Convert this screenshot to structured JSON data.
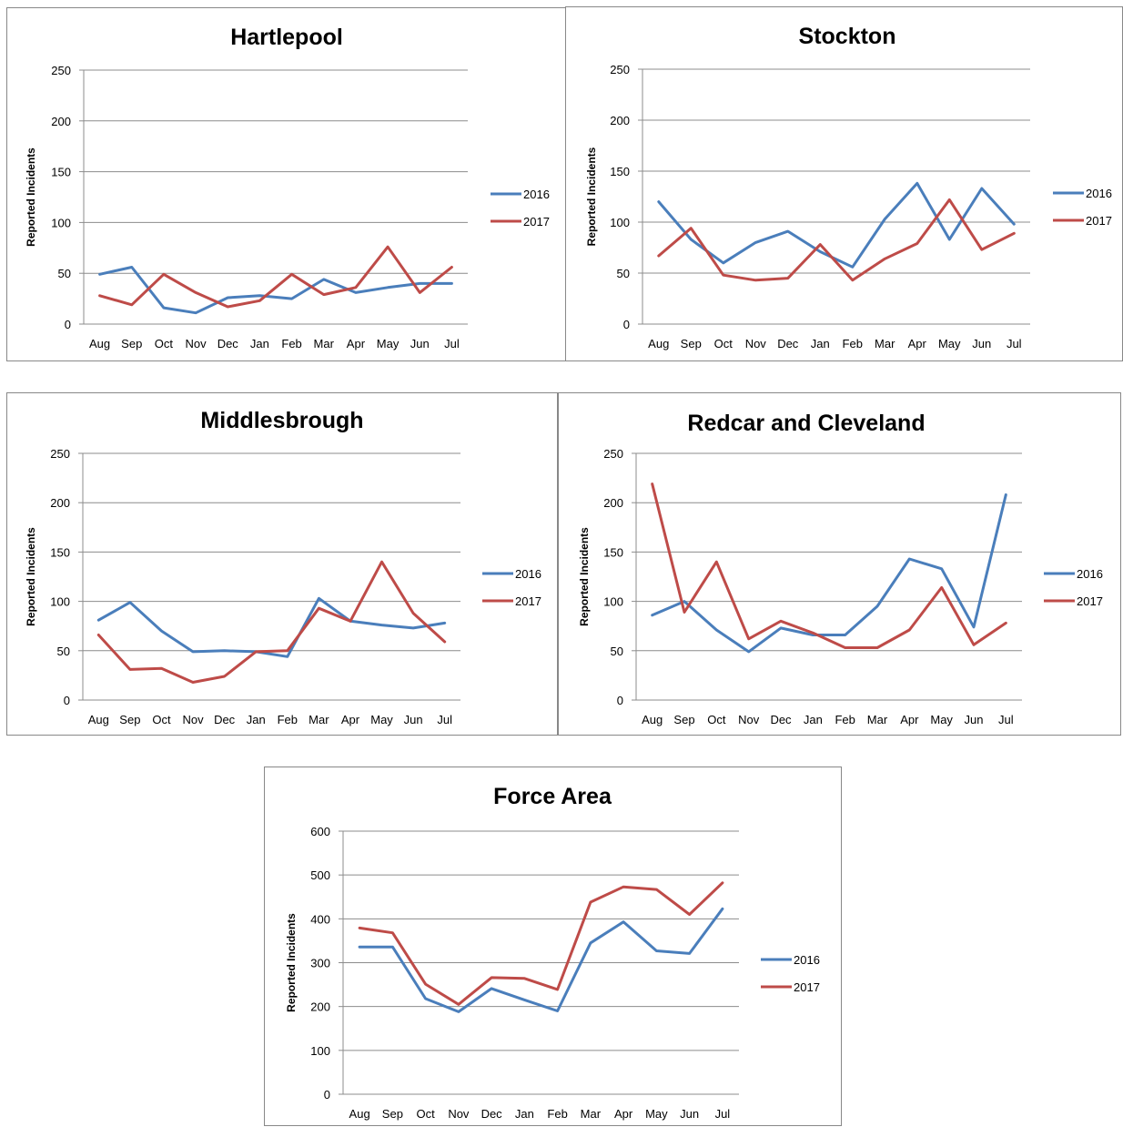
{
  "colors": {
    "series_2016": "#4a7ebb",
    "series_2017": "#be4b48"
  },
  "chart_data": [
    {
      "type": "line",
      "title": "Hartlepool",
      "ylabel": "Reported Incidents",
      "categories": [
        "Aug",
        "Sep",
        "Oct",
        "Nov",
        "Dec",
        "Jan",
        "Feb",
        "Mar",
        "Apr",
        "May",
        "Jun",
        "Jul"
      ],
      "ylim": [
        0,
        250
      ],
      "yticks": [
        0,
        50,
        100,
        150,
        200,
        250
      ],
      "grid": true,
      "legend": "right",
      "series": [
        {
          "name": "2016",
          "values": [
            49,
            56,
            16,
            11,
            26,
            28,
            25,
            44,
            31,
            36,
            40,
            40
          ]
        },
        {
          "name": "2017",
          "values": [
            28,
            19,
            49,
            31,
            17,
            23,
            49,
            29,
            36,
            76,
            31,
            56
          ]
        }
      ]
    },
    {
      "type": "line",
      "title": "Stockton",
      "ylabel": "Reported Incidents",
      "categories": [
        "Aug",
        "Sep",
        "Oct",
        "Nov",
        "Dec",
        "Jan",
        "Feb",
        "Mar",
        "Apr",
        "May",
        "Jun",
        "Jul"
      ],
      "ylim": [
        0,
        250
      ],
      "yticks": [
        0,
        50,
        100,
        150,
        200,
        250
      ],
      "grid": true,
      "legend": "right",
      "series": [
        {
          "name": "2016",
          "values": [
            120,
            83,
            60,
            80,
            91,
            71,
            56,
            103,
            138,
            83,
            133,
            98
          ]
        },
        {
          "name": "2017",
          "values": [
            67,
            94,
            48,
            43,
            45,
            78,
            43,
            64,
            79,
            122,
            73,
            89
          ]
        }
      ]
    },
    {
      "type": "line",
      "title": "Middlesbrough",
      "ylabel": "Reported Incidents",
      "categories": [
        "Aug",
        "Sep",
        "Oct",
        "Nov",
        "Dec",
        "Jan",
        "Feb",
        "Mar",
        "Apr",
        "May",
        "Jun",
        "Jul"
      ],
      "ylim": [
        0,
        250
      ],
      "yticks": [
        0,
        50,
        100,
        150,
        200,
        250
      ],
      "grid": true,
      "legend": "right",
      "series": [
        {
          "name": "2016",
          "values": [
            81,
            99,
            70,
            49,
            50,
            49,
            44,
            103,
            80,
            76,
            73,
            78
          ]
        },
        {
          "name": "2017",
          "values": [
            66,
            31,
            32,
            18,
            24,
            49,
            50,
            93,
            80,
            140,
            88,
            59
          ]
        }
      ]
    },
    {
      "type": "line",
      "title": "Redcar and Cleveland",
      "ylabel": "Reported Incidents",
      "categories": [
        "Aug",
        "Sep",
        "Oct",
        "Nov",
        "Dec",
        "Jan",
        "Feb",
        "Mar",
        "Apr",
        "May",
        "Jun",
        "Jul"
      ],
      "ylim": [
        0,
        250
      ],
      "yticks": [
        0,
        50,
        100,
        150,
        200,
        250
      ],
      "grid": true,
      "legend": "right",
      "series": [
        {
          "name": "2016",
          "values": [
            86,
            100,
            71,
            49,
            73,
            66,
            66,
            95,
            143,
            133,
            74,
            208
          ]
        },
        {
          "name": "2017",
          "values": [
            219,
            89,
            140,
            62,
            80,
            68,
            53,
            53,
            71,
            114,
            56,
            78
          ]
        }
      ]
    },
    {
      "type": "line",
      "title": "Force Area",
      "ylabel": "Reported Incidents",
      "categories": [
        "Aug",
        "Sep",
        "Oct",
        "Nov",
        "Dec",
        "Jan",
        "Feb",
        "Mar",
        "Apr",
        "May",
        "Jun",
        "Jul"
      ],
      "ylim": [
        0,
        600
      ],
      "yticks": [
        0,
        100,
        200,
        300,
        400,
        500,
        600
      ],
      "grid": true,
      "legend": "right",
      "series": [
        {
          "name": "2016",
          "values": [
            336,
            336,
            218,
            188,
            241,
            215,
            190,
            345,
            393,
            327,
            321,
            423
          ]
        },
        {
          "name": "2017",
          "values": [
            379,
            368,
            251,
            205,
            266,
            264,
            239,
            438,
            473,
            467,
            410,
            482
          ]
        }
      ]
    }
  ]
}
